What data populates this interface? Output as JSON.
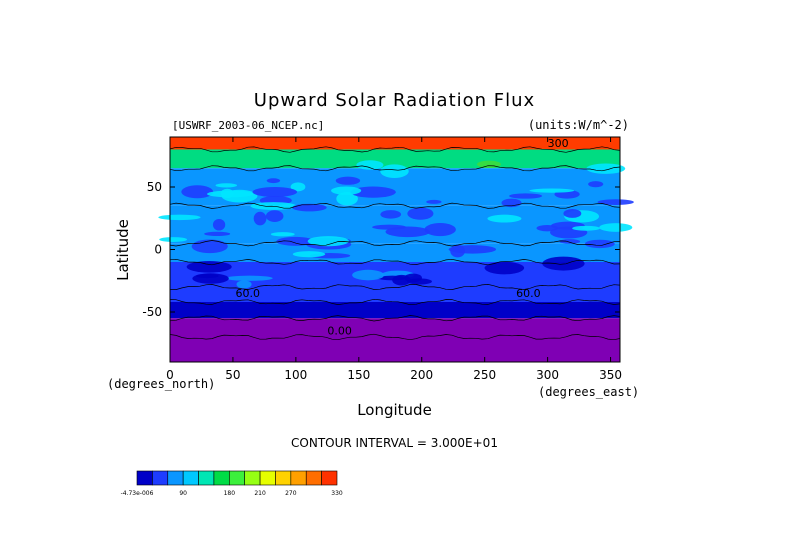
{
  "chart_data": {
    "type": "heatmap",
    "title": "Upward Solar Radiation Flux",
    "dataset": "[USWRF_2003-06_NCEP.nc]",
    "units": "(units:W/m^-2)",
    "xlabel": "Longitude",
    "ylabel": "Latitude",
    "x_axis_units": "(degrees_east)",
    "y_axis_units": "(degrees_north)",
    "xlim": [
      0,
      357.5
    ],
    "ylim": [
      -90,
      90
    ],
    "x_ticks": [
      0,
      50,
      100,
      150,
      200,
      250,
      300,
      350
    ],
    "y_ticks": [
      -50,
      0,
      50
    ],
    "contour_interval": "CONTOUR INTERVAL = 3.000E+01",
    "contour_labels": [
      "300",
      "60.0",
      "60.0",
      "0.00"
    ],
    "colorbar": {
      "tick_labels": [
        "-4.73e-006",
        "90",
        "180",
        "210",
        "270",
        "330"
      ],
      "colors": [
        "#0000c8",
        "#1e3cff",
        "#0a96ff",
        "#00c8ff",
        "#00e6b4",
        "#00dc46",
        "#3cf03c",
        "#96ff14",
        "#e6ff00",
        "#ffd200",
        "#ffa000",
        "#ff6e00",
        "#ff3200"
      ]
    },
    "lat_bands": [
      {
        "lat_from": 90,
        "lat_to": 80,
        "value": 300
      },
      {
        "lat_from": 80,
        "lat_to": 65,
        "value": 150
      },
      {
        "lat_from": 65,
        "lat_to": 35,
        "value": 110
      },
      {
        "lat_from": 35,
        "lat_to": 5,
        "value": 100
      },
      {
        "lat_from": 5,
        "lat_to": -10,
        "value": 90
      },
      {
        "lat_from": -10,
        "lat_to": -30,
        "value": 75
      },
      {
        "lat_from": -30,
        "lat_to": -42,
        "value": 60
      },
      {
        "lat_from": -42,
        "lat_to": -55,
        "value": 45
      },
      {
        "lat_from": -55,
        "lat_to": -70,
        "value": 15
      },
      {
        "lat_from": -70,
        "lat_to": -90,
        "value": 0
      }
    ]
  }
}
